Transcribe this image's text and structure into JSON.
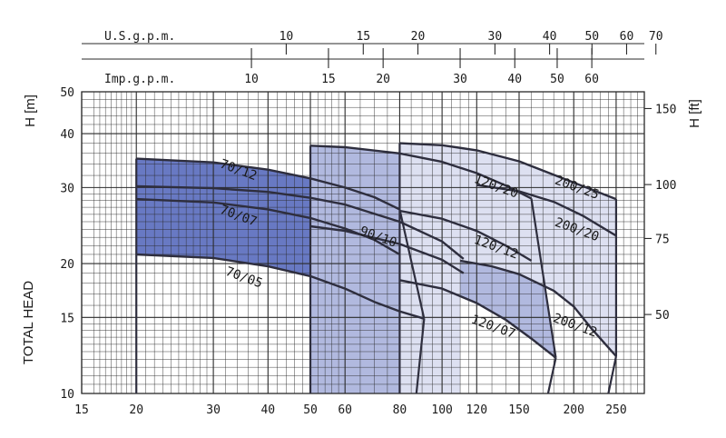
{
  "chart_data": {
    "type": "area",
    "title": "",
    "xlabel": "",
    "ylabel": "TOTAL HEAD",
    "x_scale": "log",
    "y_scale": "log",
    "xlim": [
      15,
      290
    ],
    "ylim": [
      10,
      50
    ],
    "x_ticks": [
      15,
      20,
      30,
      40,
      50,
      60,
      80,
      100,
      120,
      150,
      200,
      250
    ],
    "y_ticks": [
      10,
      15,
      20,
      30,
      40,
      50
    ],
    "y_unit_label_left": "H [m]",
    "y_unit_label_right": "H [ft]",
    "y_ticks_ft": [
      50,
      75,
      100,
      150
    ],
    "top_axes": [
      {
        "label": "U.S.g.p.m.",
        "ticks": [
          10,
          15,
          20,
          30,
          40,
          50,
          60,
          70
        ]
      },
      {
        "label": "Imp.g.p.m.",
        "ticks": [
          10,
          15,
          20,
          30,
          40,
          50,
          60
        ]
      }
    ],
    "grid": true,
    "regions": [
      {
        "name": "70",
        "color": "#6879c3",
        "q_min": 20,
        "q_max": 91,
        "upper_curve": [
          [
            20,
            35
          ],
          [
            30,
            34.3
          ],
          [
            40,
            33
          ],
          [
            50,
            31.5
          ],
          [
            60,
            30
          ],
          [
            70,
            28.5
          ],
          [
            80,
            26.7
          ]
        ],
        "lower_curve": [
          [
            20,
            21
          ],
          [
            30,
            20.6
          ],
          [
            40,
            19.7
          ],
          [
            50,
            18.7
          ],
          [
            60,
            17.5
          ],
          [
            70,
            16.3
          ],
          [
            80,
            15.5
          ],
          [
            91,
            14.9
          ]
        ]
      },
      {
        "name": "120",
        "color": "#b1b9df",
        "q_min": 50,
        "q_max": 182,
        "upper_curve": [
          [
            50,
            37.5
          ],
          [
            60,
            37.2
          ],
          [
            80,
            36
          ],
          [
            100,
            34.4
          ],
          [
            120,
            32.4
          ],
          [
            140,
            30.3
          ],
          [
            160,
            28.3
          ]
        ],
        "lower_curve": [
          [
            80,
            18.3
          ],
          [
            100,
            17.5
          ],
          [
            120,
            16.2
          ],
          [
            140,
            14.8
          ],
          [
            160,
            13.4
          ],
          [
            182,
            12.1
          ]
        ]
      },
      {
        "name": "200",
        "color": "#dde0f1",
        "q_min": 80,
        "q_max": 250,
        "upper_curve": [
          [
            80,
            38
          ],
          [
            100,
            37.6
          ],
          [
            120,
            36.6
          ],
          [
            150,
            34.5
          ],
          [
            200,
            30.8
          ],
          [
            250,
            28.2
          ]
        ],
        "lower_curve": [
          [
            110,
            20.3
          ],
          [
            130,
            19.7
          ],
          [
            150,
            18.9
          ],
          [
            180,
            17.3
          ],
          [
            200,
            15.9
          ],
          [
            220,
            14.1
          ],
          [
            250,
            12.2
          ]
        ]
      }
    ],
    "series": [
      {
        "name": "70/12",
        "points": [
          [
            20,
            35
          ],
          [
            30,
            34.3
          ],
          [
            40,
            33
          ],
          [
            50,
            31.5
          ],
          [
            60,
            30
          ],
          [
            70,
            28.5
          ],
          [
            80,
            26.7
          ]
        ]
      },
      {
        "name": "",
        "points": [
          [
            20,
            30.2
          ],
          [
            30,
            29.9
          ],
          [
            40,
            29.3
          ],
          [
            50,
            28.4
          ],
          [
            60,
            27.4
          ],
          [
            80,
            25
          ],
          [
            100,
            22.5
          ],
          [
            112,
            20.5
          ]
        ]
      },
      {
        "name": "70/07",
        "points": [
          [
            20,
            28.2
          ],
          [
            30,
            27.7
          ],
          [
            40,
            26.7
          ],
          [
            50,
            25.5
          ],
          [
            60,
            24.1
          ],
          [
            70,
            22.7
          ],
          [
            80,
            21
          ]
        ]
      },
      {
        "name": "90/10",
        "points": [
          [
            50,
            24.4
          ],
          [
            60,
            23.8
          ],
          [
            80,
            22.2
          ],
          [
            100,
            20.4
          ],
          [
            112,
            19
          ]
        ]
      },
      {
        "name": "70/05",
        "points": [
          [
            20,
            21
          ],
          [
            30,
            20.6
          ],
          [
            40,
            19.7
          ],
          [
            50,
            18.7
          ],
          [
            60,
            17.5
          ],
          [
            70,
            16.3
          ],
          [
            80,
            15.5
          ],
          [
            91,
            14.9
          ]
        ]
      },
      {
        "name": "120/20",
        "points": [
          [
            50,
            37.5
          ],
          [
            60,
            37.2
          ],
          [
            80,
            36
          ],
          [
            100,
            34.4
          ],
          [
            120,
            32.4
          ],
          [
            140,
            30.3
          ],
          [
            160,
            28.3
          ]
        ]
      },
      {
        "name": "120/12",
        "points": [
          [
            80,
            26.5
          ],
          [
            100,
            25.4
          ],
          [
            120,
            23.8
          ],
          [
            140,
            22
          ],
          [
            160,
            20.3
          ]
        ]
      },
      {
        "name": "120/07",
        "points": [
          [
            80,
            18.3
          ],
          [
            100,
            17.5
          ],
          [
            120,
            16.2
          ],
          [
            140,
            14.8
          ],
          [
            160,
            13.4
          ],
          [
            182,
            12.1
          ]
        ]
      },
      {
        "name": "200/25",
        "points": [
          [
            80,
            38
          ],
          [
            100,
            37.6
          ],
          [
            120,
            36.6
          ],
          [
            150,
            34.5
          ],
          [
            200,
            30.8
          ],
          [
            250,
            28.2
          ]
        ]
      },
      {
        "name": "200/20",
        "points": [
          [
            120,
            30.4
          ],
          [
            150,
            29.4
          ],
          [
            180,
            27.8
          ],
          [
            210,
            25.8
          ],
          [
            250,
            23.2
          ]
        ]
      },
      {
        "name": "200/12",
        "points": [
          [
            110,
            20.3
          ],
          [
            130,
            19.7
          ],
          [
            150,
            18.9
          ],
          [
            180,
            17.3
          ],
          [
            200,
            15.9
          ],
          [
            220,
            14.1
          ],
          [
            250,
            12.2
          ]
        ]
      }
    ],
    "curve_labels": [
      {
        "text": "70/12",
        "q": 34,
        "h": 32.3
      },
      {
        "text": "70/07",
        "q": 34,
        "h": 25.3
      },
      {
        "text": "70/05",
        "q": 35,
        "h": 18.2
      },
      {
        "text": "90/10",
        "q": 71,
        "h": 22.6
      },
      {
        "text": "120/20",
        "q": 132,
        "h": 29.6
      },
      {
        "text": "120/12",
        "q": 132,
        "h": 21.4
      },
      {
        "text": "120/07",
        "q": 130,
        "h": 14.0
      },
      {
        "text": "200/25",
        "q": 202,
        "h": 29.4
      },
      {
        "text": "200/20",
        "q": 202,
        "h": 23.5
      },
      {
        "text": "200/12",
        "q": 200,
        "h": 14.1
      }
    ]
  }
}
